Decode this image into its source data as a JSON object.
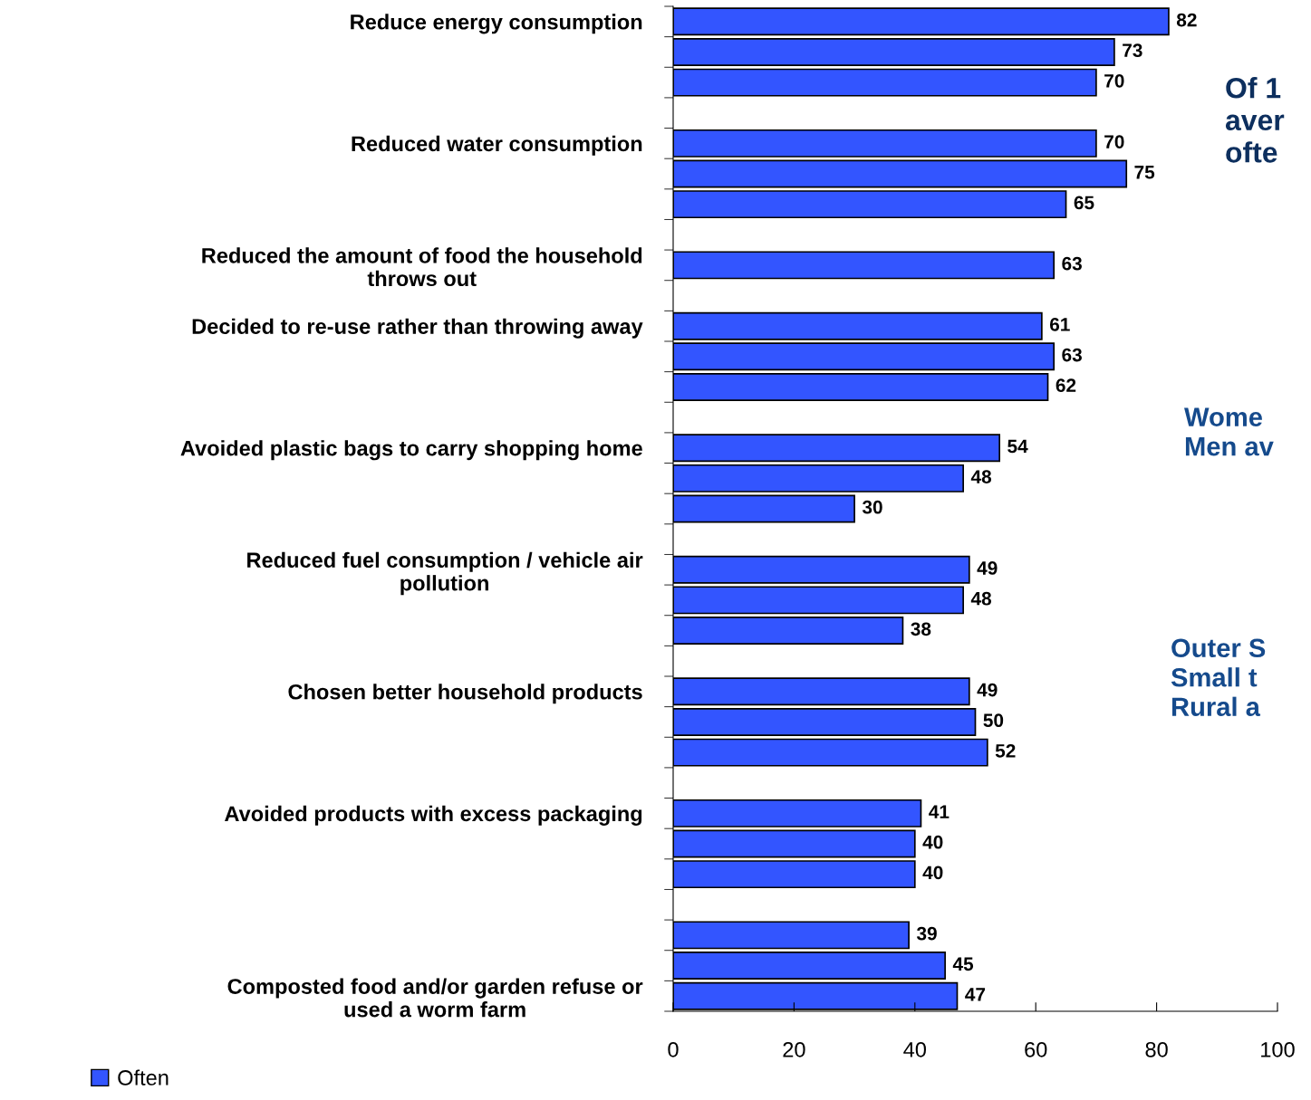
{
  "chart_data": {
    "type": "bar",
    "orientation": "horizontal",
    "categories": [
      "Reduce energy consumption",
      null,
      null,
      null,
      "Reduced water consumption",
      null,
      null,
      null,
      "Reduced the amount of food the household\nthrows out",
      null,
      "Decided to re-use rather than throwing away",
      null,
      null,
      null,
      "Avoided plastic bags to carry shopping home",
      null,
      null,
      null,
      "Reduced fuel consumption / vehicle air\npollution",
      null,
      null,
      null,
      "Chosen better household products",
      null,
      null,
      null,
      "Avoided products with excess packaging",
      null,
      null,
      null,
      null,
      null,
      "Composted food and/or garden refuse or\nused a worm farm"
    ],
    "series": [
      {
        "name": "Often",
        "color": "#3355ff",
        "values": [
          82,
          73,
          70,
          null,
          70,
          75,
          65,
          null,
          63,
          null,
          61,
          63,
          62,
          null,
          54,
          48,
          30,
          null,
          49,
          48,
          38,
          null,
          49,
          50,
          52,
          null,
          41,
          40,
          40,
          null,
          39,
          45,
          47
        ]
      }
    ],
    "xlim": [
      0,
      100
    ],
    "xticks": [
      0,
      20,
      40,
      60,
      80,
      100
    ],
    "data_labels": true,
    "grid": false,
    "legend": "bottom left",
    "annotations": [
      "Of 1\naver\nofte",
      "Wome\nMen av",
      "Outer S\nSmall t\nRural a"
    ]
  }
}
